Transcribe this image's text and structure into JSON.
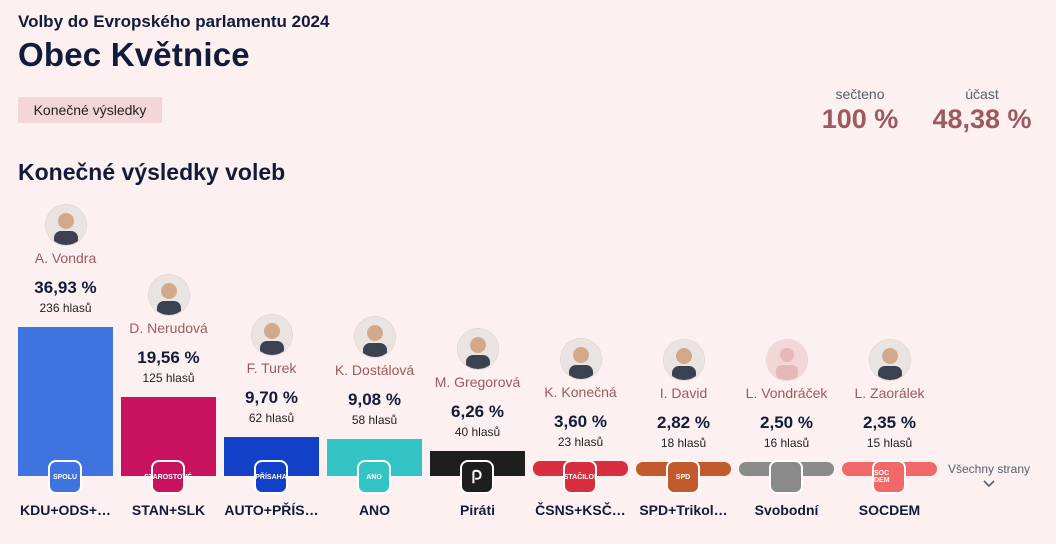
{
  "header": {
    "subtitle": "Volby do Evropského parlamentu 2024",
    "title": "Obec Květnice",
    "badge": "Konečné výsledky"
  },
  "stats": {
    "counted_label": "sečteno",
    "counted_value": "100 %",
    "turnout_label": "účast",
    "turnout_value": "48,38 %"
  },
  "section_title": "Konečné výsledky voleb",
  "parties": [
    {
      "party": "KDU+ODS+…",
      "candidate": "A. Vondra",
      "pct": "36,93 %",
      "votes": "236 hlasů",
      "share": 36.93,
      "color": "#3f74e0",
      "logo": "SPOLU",
      "logo_bg": "#3f74e0",
      "avatar": "person-photo"
    },
    {
      "party": "STAN+SLK",
      "candidate": "D. Nerudová",
      "pct": "19,56 %",
      "votes": "125 hlasů",
      "share": 19.56,
      "color": "#c8115f",
      "logo": "STAROSTOVÉ",
      "logo_bg": "#c8115f",
      "avatar": "person-photo"
    },
    {
      "party": "AUTO+PŘÍS…",
      "candidate": "F. Turek",
      "pct": "9,70 %",
      "votes": "62 hlasů",
      "share": 9.7,
      "color": "#1340c8",
      "logo": "PŘÍSAHA",
      "logo_bg": "#1340c8",
      "avatar": "person-photo"
    },
    {
      "party": "ANO",
      "candidate": "K. Dostálová",
      "pct": "9,08 %",
      "votes": "58 hlasů",
      "share": 9.08,
      "color": "#33c4c6",
      "logo": "ANO",
      "logo_bg": "#33c4c6",
      "avatar": "person-photo"
    },
    {
      "party": "Piráti",
      "candidate": "M. Gregorová",
      "pct": "6,26 %",
      "votes": "40 hlasů",
      "share": 6.26,
      "color": "#1e1e1e",
      "logo": "",
      "logo_bg": "#1e1e1e",
      "avatar": "person-photo"
    },
    {
      "party": "ČSNS+KSČ…",
      "candidate": "K. Konečná",
      "pct": "3,60 %",
      "votes": "23 hlasů",
      "share": 3.6,
      "color": "#d72f3f",
      "logo": "STAČILO!",
      "logo_bg": "#d72f3f",
      "avatar": "person-photo"
    },
    {
      "party": "SPD+Trikol…",
      "candidate": "I. David",
      "pct": "2,82 %",
      "votes": "18 hlasů",
      "share": 2.82,
      "color": "#c25a2d",
      "logo": "SPD",
      "logo_bg": "#c25a2d",
      "avatar": "person-photo"
    },
    {
      "party": "Svobodní",
      "candidate": "L. Vondráček",
      "pct": "2,50 %",
      "votes": "16 hlasů",
      "share": 2.5,
      "color": "#8a8a8a",
      "logo": "",
      "logo_bg": "#8a8a8a",
      "avatar": "placeholder-person-icon"
    },
    {
      "party": "SOCDEM",
      "candidate": "L. Zaorálek",
      "pct": "2,35 %",
      "votes": "15 hlasů",
      "share": 2.35,
      "color": "#f06868",
      "logo": "SOC DEM",
      "logo_bg": "#f06868",
      "avatar": "person-photo"
    }
  ],
  "all_parties_label": "Všechny strany"
}
